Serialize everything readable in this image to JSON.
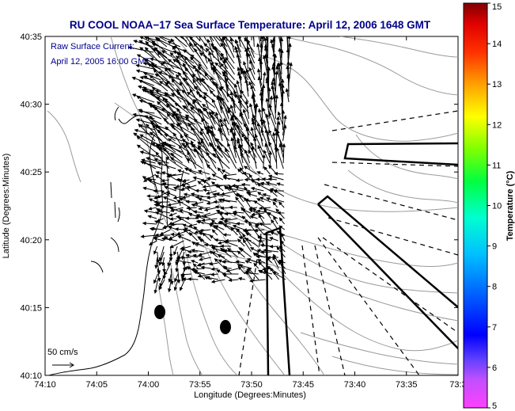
{
  "chart_data": {
    "type": "map",
    "title": "RU COOL  NOAA−17  Sea Surface Temperature:  April 12, 2006 1648 GMT",
    "inset_label_line1": "Raw Surface Current:",
    "inset_label_line2": "April 12, 2005 16:00 GMT",
    "xlabel": "Longitude (Degrees:Minutes)",
    "ylabel": "Latitude (Degrees:Minutes)",
    "x_ticks": [
      "74:10",
      "74:05",
      "74:00",
      "73:55",
      "73:50",
      "73:45",
      "73:40",
      "73:35",
      "73:3"
    ],
    "y_ticks": [
      "40:35",
      "40:30",
      "40:25",
      "40:20",
      "40:15",
      "40:10"
    ],
    "xlim": [
      -74.1667,
      -73.5
    ],
    "ylim": [
      40.1667,
      40.5833
    ],
    "scale_label": "50 cm/s",
    "colorbar": {
      "label": "Temperature (°C)",
      "ticks": [
        "5",
        "6",
        "7",
        "8",
        "9",
        "10",
        "11",
        "12",
        "13",
        "14",
        "15"
      ],
      "range": [
        5,
        15
      ],
      "colors": [
        "#ff00ff",
        "#8000ff",
        "#0000ff",
        "#0080ff",
        "#00ffff",
        "#00ff80",
        "#00ff00",
        "#80ff00",
        "#ffff00",
        "#ff8000",
        "#ff0000",
        "#800000"
      ]
    },
    "current_field_extent": {
      "lon_min": -74.0,
      "lon_max": -73.7667,
      "lat_min": 40.2833,
      "lat_max": 40.5833
    }
  }
}
